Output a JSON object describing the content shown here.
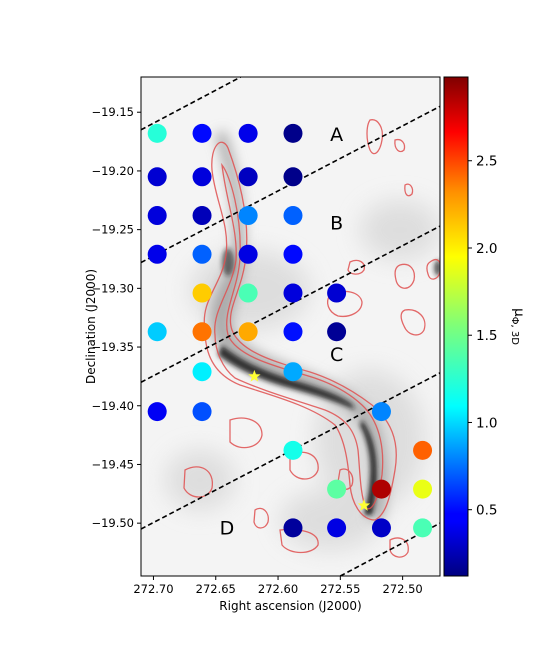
{
  "chart_data": {
    "type": "scatter",
    "xlabel": "Right ascension (J2000)",
    "ylabel": "Declination (J2000)",
    "xlim": [
      272.71,
      272.47
    ],
    "ylim": [
      -19.545,
      -19.12
    ],
    "x_ticks": [
      "272.70",
      "272.65",
      "272.60",
      "272.55",
      "272.50"
    ],
    "x_tick_values": [
      272.7,
      272.65,
      272.6,
      272.55,
      272.5
    ],
    "y_ticks": [
      "−19.15",
      "−19.20",
      "−19.25",
      "−19.30",
      "−19.35",
      "−19.40",
      "−19.45",
      "−19.50"
    ],
    "y_tick_values": [
      -19.15,
      -19.2,
      -19.25,
      -19.3,
      -19.35,
      -19.4,
      -19.45,
      -19.5
    ],
    "colorbar": {
      "label": "μΦ, 3D",
      "label_main": "μ",
      "label_sub": "Φ, 3D",
      "range": [
        0.12,
        2.98
      ],
      "ticks": [
        "0.5",
        "1.0",
        "1.5",
        "2.0",
        "2.5"
      ],
      "tick_values": [
        0.5,
        1.0,
        1.5,
        2.0,
        2.5
      ],
      "colormap": "jet"
    },
    "regions": [
      {
        "label": "A",
        "ra": 272.553,
        "dec": -19.17
      },
      {
        "label": "B",
        "ra": 272.553,
        "dec": -19.245
      },
      {
        "label": "C",
        "ra": 272.553,
        "dec": -19.357
      },
      {
        "label": "D",
        "ra": 272.641,
        "dec": -19.505
      }
    ],
    "dividers": [
      {
        "ra1": 272.71,
        "dec1": -19.165,
        "ra2": 272.63,
        "dec2": -19.12
      },
      {
        "ra1": 272.71,
        "dec1": -19.278,
        "ra2": 272.47,
        "dec2": -19.145
      },
      {
        "ra1": 272.71,
        "dec1": -19.38,
        "ra2": 272.47,
        "dec2": -19.247
      },
      {
        "ra1": 272.71,
        "dec1": -19.505,
        "ra2": 272.47,
        "dec2": -19.372
      },
      {
        "ra1": 272.55,
        "dec1": -19.545,
        "ra2": 272.47,
        "dec2": -19.5
      }
    ],
    "stars": [
      {
        "ra": 272.619,
        "dec": -19.375,
        "color": "#ffff33"
      },
      {
        "ra": 272.531,
        "dec": -19.485,
        "color": "#ffff33"
      }
    ],
    "points": [
      {
        "ra": 272.697,
        "dec": -19.168,
        "value": 1.3
      },
      {
        "ra": 272.661,
        "dec": -19.168,
        "value": 0.5
      },
      {
        "ra": 272.624,
        "dec": -19.168,
        "value": 0.42
      },
      {
        "ra": 272.588,
        "dec": -19.168,
        "value": 0.15
      },
      {
        "ra": 272.697,
        "dec": -19.205,
        "value": 0.35
      },
      {
        "ra": 272.661,
        "dec": -19.205,
        "value": 0.38
      },
      {
        "ra": 272.624,
        "dec": -19.205,
        "value": 0.3
      },
      {
        "ra": 272.588,
        "dec": -19.205,
        "value": 0.15
      },
      {
        "ra": 272.697,
        "dec": -19.238,
        "value": 0.38
      },
      {
        "ra": 272.661,
        "dec": -19.238,
        "value": 0.28
      },
      {
        "ra": 272.624,
        "dec": -19.238,
        "value": 0.85
      },
      {
        "ra": 272.588,
        "dec": -19.238,
        "value": 0.75
      },
      {
        "ra": 272.697,
        "dec": -19.271,
        "value": 0.42
      },
      {
        "ra": 272.661,
        "dec": -19.271,
        "value": 0.75
      },
      {
        "ra": 272.624,
        "dec": -19.271,
        "value": 0.4
      },
      {
        "ra": 272.588,
        "dec": -19.271,
        "value": 0.5
      },
      {
        "ra": 272.661,
        "dec": -19.304,
        "value": 2.05
      },
      {
        "ra": 272.624,
        "dec": -19.304,
        "value": 1.4
      },
      {
        "ra": 272.588,
        "dec": -19.304,
        "value": 0.38
      },
      {
        "ra": 272.553,
        "dec": -19.304,
        "value": 0.35
      },
      {
        "ra": 272.697,
        "dec": -19.337,
        "value": 1.05
      },
      {
        "ra": 272.661,
        "dec": -19.337,
        "value": 2.3
      },
      {
        "ra": 272.624,
        "dec": -19.337,
        "value": 2.15
      },
      {
        "ra": 272.588,
        "dec": -19.337,
        "value": 0.52
      },
      {
        "ra": 272.553,
        "dec": -19.337,
        "value": 0.18
      },
      {
        "ra": 272.661,
        "dec": -19.371,
        "value": 1.15
      },
      {
        "ra": 272.588,
        "dec": -19.371,
        "value": 0.95
      },
      {
        "ra": 272.697,
        "dec": -19.405,
        "value": 0.45
      },
      {
        "ra": 272.661,
        "dec": -19.405,
        "value": 0.7
      },
      {
        "ra": 272.517,
        "dec": -19.405,
        "value": 0.85
      },
      {
        "ra": 272.588,
        "dec": -19.438,
        "value": 1.25
      },
      {
        "ra": 272.484,
        "dec": -19.438,
        "value": 2.35
      },
      {
        "ra": 272.553,
        "dec": -19.471,
        "value": 1.45
      },
      {
        "ra": 272.517,
        "dec": -19.471,
        "value": 2.85
      },
      {
        "ra": 272.484,
        "dec": -19.471,
        "value": 1.85
      },
      {
        "ra": 272.588,
        "dec": -19.504,
        "value": 0.2
      },
      {
        "ra": 272.553,
        "dec": -19.504,
        "value": 0.4
      },
      {
        "ra": 272.517,
        "dec": -19.504,
        "value": 0.32
      },
      {
        "ra": 272.484,
        "dec": -19.504,
        "value": 1.4
      }
    ]
  }
}
